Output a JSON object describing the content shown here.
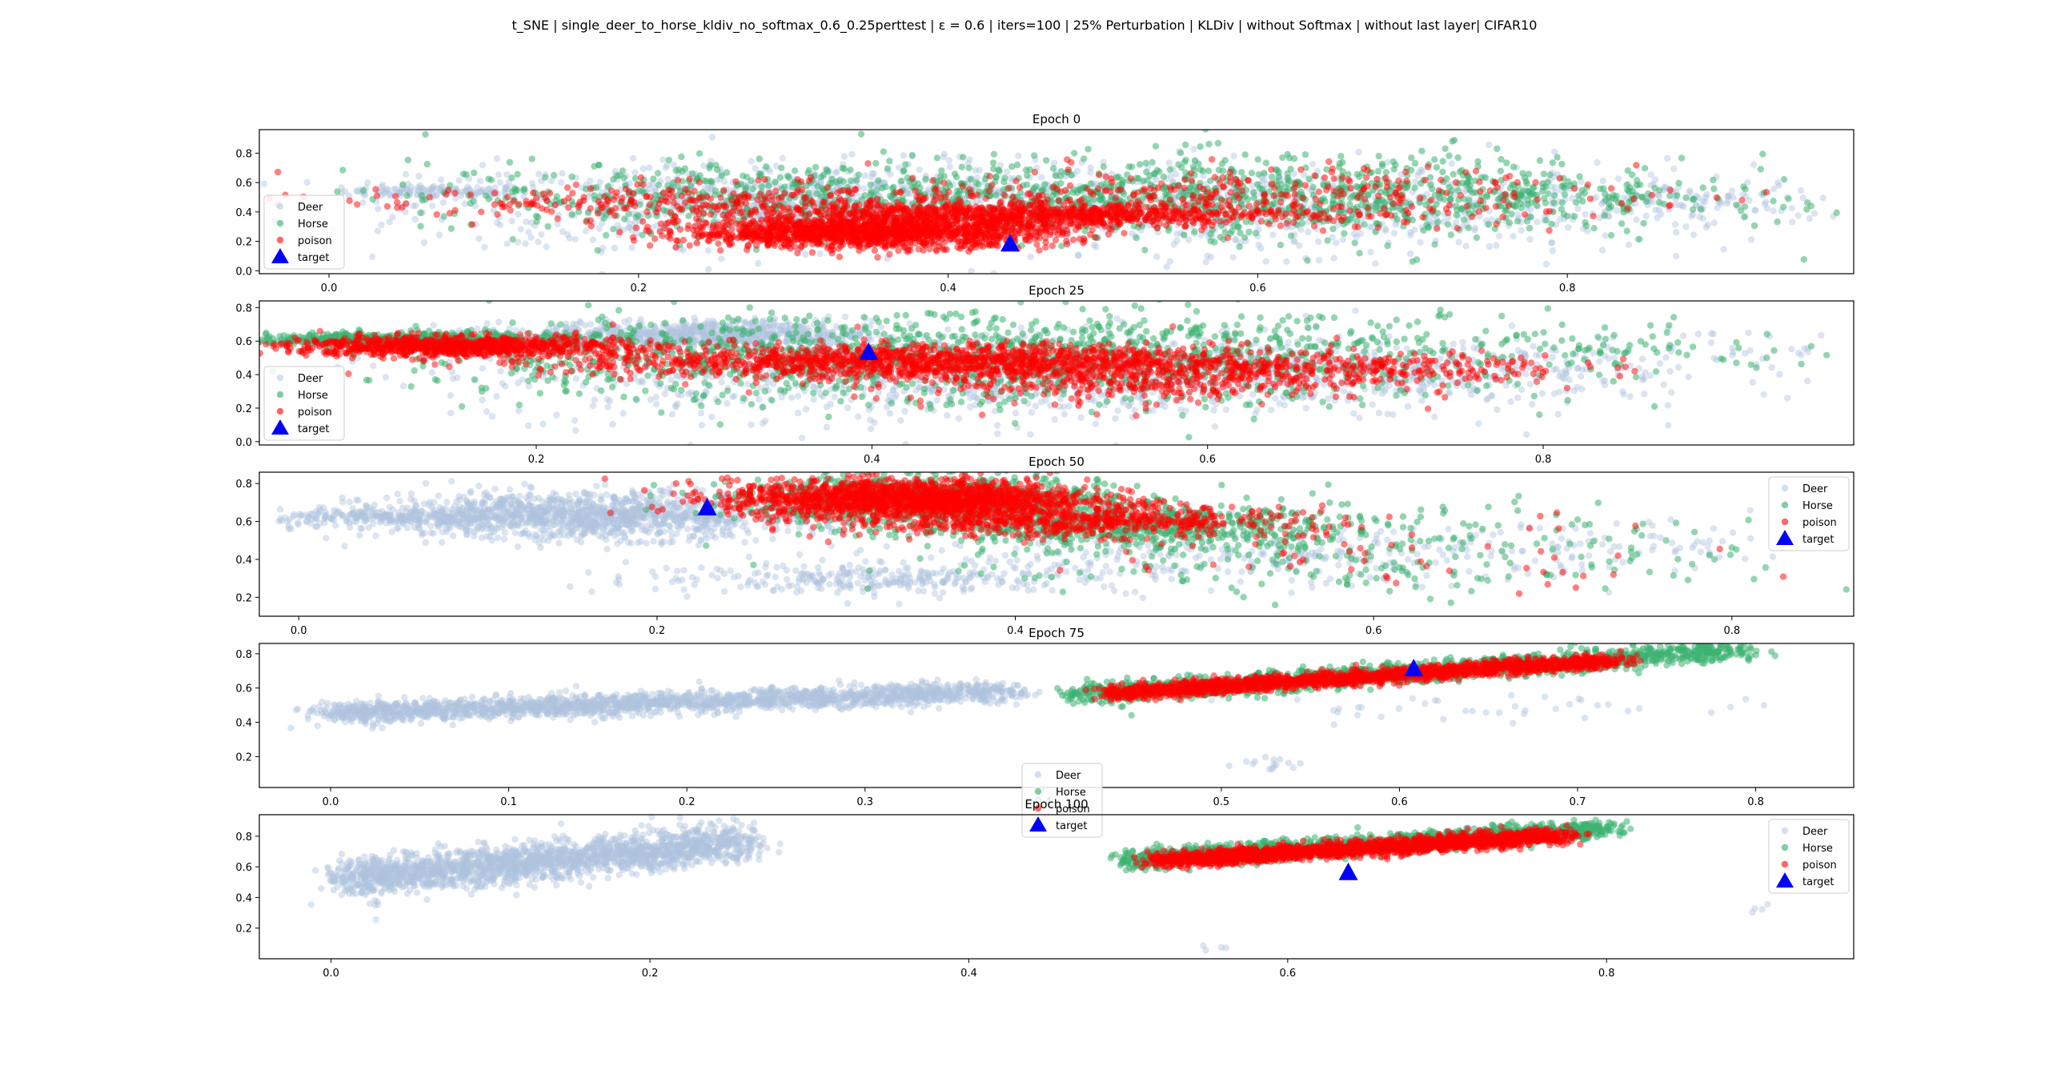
{
  "figure": {
    "title": "t_SNE | single_deer_to_horse_kldiv_no_softmax_0.6_0.25perttest | ε = 0.6 | iters=100 | 25% Perturbation | KLDiv | without Softmax | without last layer| CIFAR10"
  },
  "colors": {
    "deer": "#b0c4de",
    "horse": "#3cb371",
    "poison": "#ff0000",
    "target": "#0000ff"
  },
  "legend_labels": [
    "Deer",
    "Horse",
    "poison",
    "target"
  ],
  "chart_data": [
    {
      "type": "scatter",
      "title": "Epoch 0",
      "xlim": [
        -0.045,
        0.985
      ],
      "ylim": [
        -0.02,
        0.96
      ],
      "xticks": [
        0.0,
        0.2,
        0.4,
        0.6,
        0.8
      ],
      "yticks": [
        0.0,
        0.2,
        0.4,
        0.6,
        0.8
      ],
      "legend": "bottom-left",
      "series": [
        {
          "name": "Deer",
          "clusters": [
            {
              "cx": 0.07,
              "cy": 0.54,
              "sx": 0.03,
              "sy": 0.02,
              "n": 120
            },
            {
              "cx": 0.3,
              "cy": 0.45,
              "sx": 0.12,
              "sy": 0.14,
              "n": 900
            },
            {
              "cx": 0.62,
              "cy": 0.42,
              "sx": 0.15,
              "sy": 0.15,
              "n": 700
            },
            {
              "cx": 0.88,
              "cy": 0.48,
              "sx": 0.05,
              "sy": 0.06,
              "n": 80
            }
          ]
        },
        {
          "name": "Horse",
          "clusters": [
            {
              "cx": 0.3,
              "cy": 0.5,
              "sx": 0.12,
              "sy": 0.12,
              "n": 600
            },
            {
              "cx": 0.62,
              "cy": 0.5,
              "sx": 0.13,
              "sy": 0.14,
              "n": 900
            },
            {
              "cx": 0.82,
              "cy": 0.52,
              "sx": 0.05,
              "sy": 0.06,
              "n": 60
            }
          ]
        },
        {
          "name": "poison",
          "clusters": [
            {
              "cx": 0.35,
              "cy": 0.26,
              "sx": 0.06,
              "sy": 0.05,
              "n": 1400
            },
            {
              "cx": 0.45,
              "cy": 0.38,
              "sx": 0.09,
              "sy": 0.04,
              "n": 900
            },
            {
              "cx": 0.25,
              "cy": 0.48,
              "sx": 0.12,
              "sy": 0.06,
              "n": 300
            },
            {
              "cx": 0.6,
              "cy": 0.5,
              "sx": 0.12,
              "sy": 0.1,
              "n": 300
            }
          ]
        },
        {
          "name": "target",
          "points": [
            [
              0.44,
              0.18
            ]
          ]
        }
      ]
    },
    {
      "type": "scatter",
      "title": "Epoch 25",
      "xlim": [
        0.035,
        0.985
      ],
      "ylim": [
        -0.02,
        0.84
      ],
      "xticks": [
        0.2,
        0.4,
        0.6,
        0.8
      ],
      "yticks": [
        0.0,
        0.2,
        0.4,
        0.6,
        0.8
      ],
      "legend": "bottom-left",
      "series": [
        {
          "name": "Deer",
          "clusters": [
            {
              "cx": 0.3,
              "cy": 0.64,
              "sx": 0.05,
              "sy": 0.04,
              "n": 700
            },
            {
              "cx": 0.45,
              "cy": 0.4,
              "sx": 0.15,
              "sy": 0.14,
              "n": 900
            },
            {
              "cx": 0.7,
              "cy": 0.42,
              "sx": 0.1,
              "sy": 0.1,
              "n": 400
            },
            {
              "cx": 0.9,
              "cy": 0.55,
              "sx": 0.05,
              "sy": 0.05,
              "n": 40
            }
          ]
        },
        {
          "name": "Horse",
          "clusters": [
            {
              "cx": 0.12,
              "cy": 0.61,
              "sx": 0.05,
              "sy": 0.02,
              "n": 500
            },
            {
              "cx": 0.35,
              "cy": 0.5,
              "sx": 0.12,
              "sy": 0.12,
              "n": 700
            },
            {
              "cx": 0.58,
              "cy": 0.5,
              "sx": 0.12,
              "sy": 0.14,
              "n": 700
            },
            {
              "cx": 0.86,
              "cy": 0.55,
              "sx": 0.05,
              "sy": 0.06,
              "n": 60
            }
          ]
        },
        {
          "name": "poison",
          "clusters": [
            {
              "cx": 0.15,
              "cy": 0.57,
              "sx": 0.05,
              "sy": 0.03,
              "n": 900
            },
            {
              "cx": 0.42,
              "cy": 0.48,
              "sx": 0.1,
              "sy": 0.05,
              "n": 1200
            },
            {
              "cx": 0.55,
              "cy": 0.4,
              "sx": 0.08,
              "sy": 0.08,
              "n": 600
            },
            {
              "cx": 0.7,
              "cy": 0.45,
              "sx": 0.06,
              "sy": 0.05,
              "n": 200
            }
          ]
        },
        {
          "name": "target",
          "points": [
            [
              0.398,
              0.53
            ]
          ]
        }
      ]
    },
    {
      "type": "scatter",
      "title": "Epoch 50",
      "xlim": [
        -0.022,
        0.868
      ],
      "ylim": [
        0.1,
        0.86
      ],
      "xticks": [
        0.0,
        0.2,
        0.4,
        0.6,
        0.8
      ],
      "yticks": [
        0.2,
        0.4,
        0.6,
        0.8
      ],
      "legend": "top-right",
      "series": [
        {
          "name": "Deer",
          "clusters": [
            {
              "cx": 0.05,
              "cy": 0.62,
              "sx": 0.03,
              "sy": 0.02,
              "n": 200
            },
            {
              "cx": 0.16,
              "cy": 0.63,
              "sx": 0.06,
              "sy": 0.06,
              "n": 1300
            },
            {
              "cx": 0.33,
              "cy": 0.3,
              "sx": 0.07,
              "sy": 0.04,
              "n": 300
            },
            {
              "cx": 0.55,
              "cy": 0.42,
              "sx": 0.1,
              "sy": 0.08,
              "n": 300
            },
            {
              "cx": 0.75,
              "cy": 0.46,
              "sx": 0.05,
              "sy": 0.06,
              "n": 50
            }
          ]
        },
        {
          "name": "Horse",
          "clusters": [
            {
              "cx": 0.35,
              "cy": 0.72,
              "sx": 0.05,
              "sy": 0.06,
              "n": 900
            },
            {
              "cx": 0.46,
              "cy": 0.58,
              "sx": 0.06,
              "sy": 0.05,
              "n": 600
            },
            {
              "cx": 0.58,
              "cy": 0.45,
              "sx": 0.12,
              "sy": 0.12,
              "n": 300
            }
          ]
        },
        {
          "name": "poison",
          "clusters": [
            {
              "cx": 0.34,
              "cy": 0.72,
              "sx": 0.05,
              "sy": 0.05,
              "n": 1600
            },
            {
              "cx": 0.43,
              "cy": 0.6,
              "sx": 0.06,
              "sy": 0.04,
              "n": 600
            },
            {
              "cx": 0.6,
              "cy": 0.45,
              "sx": 0.1,
              "sy": 0.1,
              "n": 60
            }
          ]
        },
        {
          "name": "target",
          "points": [
            [
              0.228,
              0.67
            ]
          ]
        }
      ]
    },
    {
      "type": "scatter",
      "title": "Epoch 75",
      "xlim": [
        -0.04,
        0.855
      ],
      "ylim": [
        0.02,
        0.86
      ],
      "xticks": [
        0.0,
        0.1,
        0.2,
        0.3,
        0.4,
        0.5,
        0.6,
        0.7,
        0.8
      ],
      "yticks": [
        0.2,
        0.4,
        0.6,
        0.8
      ],
      "legend": "bottom-center",
      "series": [
        {
          "name": "Deer",
          "line_clusters": [
            {
              "x0": 0.0,
              "y0": 0.45,
              "x1": 0.38,
              "y1": 0.58,
              "sy": 0.03,
              "n": 2000
            }
          ],
          "clusters": [
            {
              "cx": 0.53,
              "cy": 0.16,
              "sx": 0.01,
              "sy": 0.02,
              "n": 15
            },
            {
              "cx": 0.67,
              "cy": 0.48,
              "sx": 0.08,
              "sy": 0.04,
              "n": 40
            }
          ]
        },
        {
          "name": "Horse",
          "line_clusters": [
            {
              "x0": 0.42,
              "y0": 0.56,
              "x1": 0.79,
              "y1": 0.82,
              "sy": 0.03,
              "n": 1400
            }
          ]
        },
        {
          "name": "poison",
          "line_clusters": [
            {
              "x0": 0.44,
              "y0": 0.57,
              "x1": 0.72,
              "y1": 0.76,
              "sy": 0.02,
              "n": 1800
            }
          ]
        },
        {
          "name": "target",
          "points": [
            [
              0.608,
              0.71
            ]
          ]
        }
      ]
    },
    {
      "type": "scatter",
      "title": "Epoch 100",
      "xlim": [
        -0.045,
        0.955
      ],
      "ylim": [
        0.0,
        0.94
      ],
      "xticks": [
        0.0,
        0.2,
        0.4,
        0.6,
        0.8
      ],
      "yticks": [
        0.2,
        0.4,
        0.6,
        0.8
      ],
      "legend": "top-right",
      "series": [
        {
          "name": "Deer",
          "line_clusters": [
            {
              "x0": 0.01,
              "y0": 0.52,
              "x1": 0.26,
              "y1": 0.76,
              "sy": 0.06,
              "n": 2000
            }
          ],
          "clusters": [
            {
              "cx": 0.56,
              "cy": 0.07,
              "sx": 0.01,
              "sy": 0.01,
              "n": 4
            },
            {
              "cx": 0.9,
              "cy": 0.33,
              "sx": 0.01,
              "sy": 0.02,
              "n": 4
            }
          ]
        },
        {
          "name": "Horse",
          "line_clusters": [
            {
              "x0": 0.5,
              "y0": 0.64,
              "x1": 0.8,
              "y1": 0.85,
              "sy": 0.03,
              "n": 1400
            }
          ]
        },
        {
          "name": "poison",
          "line_clusters": [
            {
              "x0": 0.52,
              "y0": 0.64,
              "x1": 0.77,
              "y1": 0.8,
              "sy": 0.025,
              "n": 1800
            }
          ]
        },
        {
          "name": "target",
          "points": [
            [
              0.638,
              0.56
            ]
          ]
        }
      ]
    }
  ]
}
